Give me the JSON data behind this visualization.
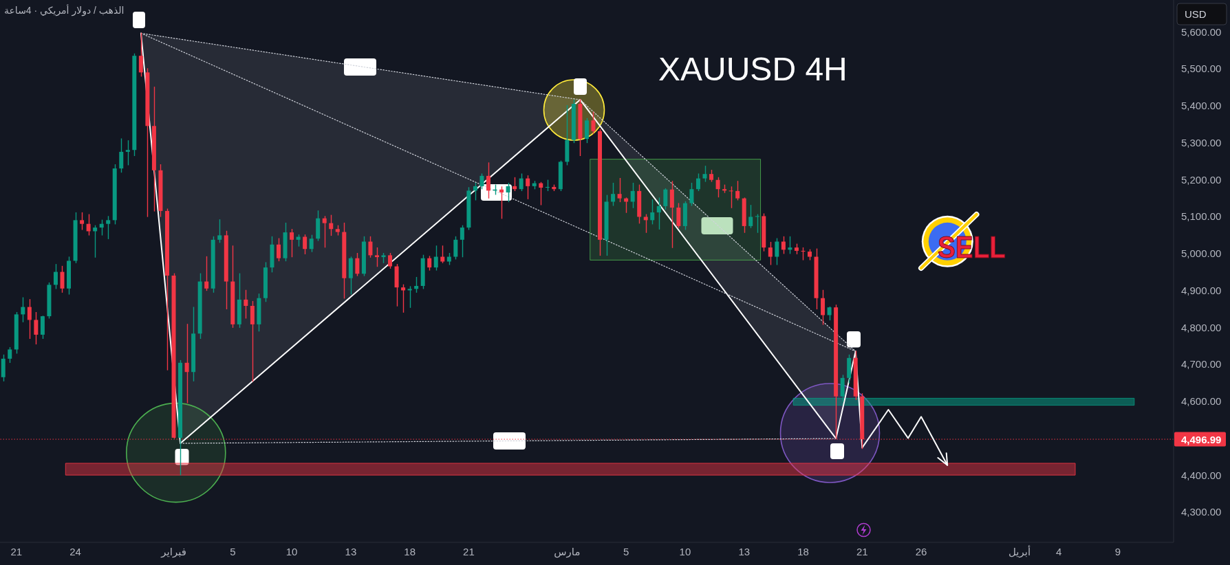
{
  "chart_data": {
    "type": "candlestick",
    "title": "XAUUSD 4H",
    "subtitle": "الذهب / دولار أمريكي · 4ساعة",
    "ylabel": "USD",
    "marker": "none",
    "annotations": [
      "SELL"
    ],
    "categories": [
      null,
      null,
      "21",
      null,
      null,
      null,
      null,
      null,
      null,
      null,
      null,
      "24",
      null,
      null,
      null,
      null,
      null,
      null,
      null,
      null,
      null,
      null,
      null,
      null,
      null,
      null,
      "فبراير",
      null,
      null,
      null,
      null,
      null,
      null,
      null,
      null,
      "5",
      null,
      null,
      null,
      null,
      null,
      null,
      null,
      null,
      "10",
      null,
      null,
      null,
      null,
      null,
      null,
      null,
      null,
      "13",
      null,
      null,
      null,
      null,
      null,
      null,
      null,
      null,
      "18",
      null,
      null,
      null,
      null,
      null,
      null,
      null,
      null,
      "21",
      null,
      null,
      null,
      null,
      null,
      null,
      null,
      null,
      null,
      null,
      null,
      null,
      null,
      null,
      "مارس",
      null,
      null,
      null,
      null,
      null,
      null,
      null,
      null,
      "5",
      null,
      null,
      null,
      null,
      null,
      null,
      null,
      null,
      "10",
      null,
      null,
      null,
      null,
      null,
      null,
      null,
      null,
      "13",
      null,
      null,
      null,
      null,
      null,
      null,
      null,
      null,
      "18",
      null,
      null,
      null,
      null,
      null,
      null,
      null,
      null,
      "21",
      null,
      null,
      null,
      null,
      null,
      null,
      null,
      null,
      "26",
      null,
      null,
      null,
      null,
      null,
      null,
      null,
      null,
      null,
      null,
      null,
      null,
      null,
      null,
      "أبريل",
      null,
      null,
      null,
      null,
      null,
      "4",
      null,
      null,
      null,
      null,
      null,
      null,
      null,
      null,
      "9",
      null,
      null,
      null,
      null,
      null,
      null,
      null,
      null
    ],
    "ohlc": [
      [
        4665,
        4725,
        4655,
        4715
      ],
      [
        4715,
        4745,
        4705,
        4740
      ],
      [
        4740,
        4840,
        4730,
        4835
      ],
      [
        4835,
        4880,
        4815,
        4855
      ],
      [
        4855,
        4875,
        4770,
        4820
      ],
      [
        4820,
        4840,
        4755,
        4780
      ],
      [
        4780,
        4830,
        4770,
        4830
      ],
      [
        4830,
        4920,
        4825,
        4915
      ],
      [
        4915,
        4970,
        4905,
        4950
      ],
      [
        4950,
        4965,
        4895,
        4905
      ],
      [
        4905,
        4990,
        4890,
        4980
      ],
      [
        4980,
        5110,
        4975,
        5090
      ],
      [
        5090,
        5110,
        5065,
        5080
      ],
      [
        5080,
        5105,
        5050,
        5060
      ],
      [
        5060,
        5075,
        4990,
        5070
      ],
      [
        5070,
        5090,
        5050,
        5080
      ],
      [
        5080,
        5100,
        5040,
        5090
      ],
      [
        5090,
        5240,
        5080,
        5230
      ],
      [
        5230,
        5310,
        5220,
        5275
      ],
      [
        5275,
        5305,
        5240,
        5280
      ],
      [
        5280,
        5540,
        5265,
        5535
      ],
      [
        5535,
        5596,
        5480,
        5490
      ],
      [
        5490,
        5500,
        5100,
        5345
      ],
      [
        5345,
        5450,
        5115,
        5225
      ],
      [
        5225,
        5240,
        5100,
        5115
      ],
      [
        5115,
        5120,
        4685,
        4940
      ],
      [
        4940,
        4945,
        4500,
        4501
      ],
      [
        4501,
        4710,
        4401,
        4704
      ],
      [
        4704,
        4808,
        4596,
        4679
      ],
      [
        4679,
        4854,
        4655,
        4783
      ],
      [
        4783,
        4945,
        4770,
        4924
      ],
      [
        4924,
        4991,
        4900,
        4905
      ],
      [
        4905,
        5045,
        4895,
        5037
      ],
      [
        5037,
        5091,
        5030,
        5049
      ],
      [
        5049,
        5060,
        4850,
        4924
      ],
      [
        4924,
        5020,
        4800,
        4808
      ],
      [
        4808,
        4945,
        4800,
        4875
      ],
      [
        4875,
        4900,
        4825,
        4858
      ],
      [
        4858,
        4870,
        4654,
        4808
      ],
      [
        4808,
        4890,
        4790,
        4879
      ],
      [
        4879,
        4975,
        4870,
        4962
      ],
      [
        4962,
        5045,
        4950,
        5024
      ],
      [
        5024,
        5040,
        4980,
        4987
      ],
      [
        4987,
        5082,
        4980,
        5057
      ],
      [
        5057,
        5065,
        4991,
        5037
      ],
      [
        5037,
        5050,
        5020,
        5045
      ],
      [
        5045,
        5050,
        4999,
        5012
      ],
      [
        5012,
        5049,
        5005,
        5040
      ],
      [
        5040,
        5115,
        5035,
        5095
      ],
      [
        5095,
        5100,
        5017,
        5082
      ],
      [
        5082,
        5103,
        5049,
        5066
      ],
      [
        5066,
        5075,
        5050,
        5058
      ],
      [
        5058,
        5082,
        4879,
        4933
      ],
      [
        4933,
        4990,
        4890,
        4987
      ],
      [
        4987,
        5000,
        4940,
        4945
      ],
      [
        4945,
        5045,
        4940,
        5032
      ],
      [
        5032,
        5045,
        4990,
        4995
      ],
      [
        4995,
        5015,
        4965,
        4990
      ],
      [
        4990,
        5000,
        4975,
        4995
      ],
      [
        4995,
        5000,
        4960,
        4965
      ],
      [
        4965,
        4970,
        4858,
        4908
      ],
      [
        4908,
        4915,
        4841,
        4900
      ],
      [
        4900,
        4910,
        4854,
        4904
      ],
      [
        4904,
        4935,
        4895,
        4912
      ],
      [
        4912,
        4995,
        4905,
        4987
      ],
      [
        4987,
        4992,
        4955,
        4962
      ],
      [
        4962,
        5020,
        4955,
        4991
      ],
      [
        4991,
        5020,
        4975,
        4978
      ],
      [
        4978,
        5000,
        4970,
        4991
      ],
      [
        4991,
        5045,
        4985,
        5037
      ],
      [
        5037,
        5075,
        4991,
        5070
      ],
      [
        5070,
        5178,
        5065,
        5170
      ],
      [
        5170,
        5190,
        5145,
        5182
      ],
      [
        5182,
        5215,
        5175,
        5210
      ],
      [
        5210,
        5245,
        5150,
        5170
      ],
      [
        5170,
        5185,
        5160,
        5173
      ],
      [
        5173,
        5180,
        5095,
        5165
      ],
      [
        5165,
        5190,
        5140,
        5182
      ],
      [
        5182,
        5205,
        5170,
        5174
      ],
      [
        5174,
        5215,
        5170,
        5203
      ],
      [
        5203,
        5210,
        5148,
        5182
      ],
      [
        5182,
        5195,
        5175,
        5190
      ],
      [
        5190,
        5192,
        5132,
        5178
      ],
      [
        5178,
        5198,
        5170,
        5180
      ],
      [
        5180,
        5185,
        5170,
        5174
      ],
      [
        5174,
        5250,
        5170,
        5248
      ],
      [
        5248,
        5400,
        5240,
        5307
      ],
      [
        5307,
        5415,
        5300,
        5405
      ],
      [
        5405,
        5416,
        5265,
        5310
      ],
      [
        5310,
        5365,
        5300,
        5360
      ],
      [
        5360,
        5382,
        5325,
        5331
      ],
      [
        5331,
        5335,
        4995,
        5037
      ],
      [
        5037,
        5157,
        4995,
        5140
      ],
      [
        5140,
        5190,
        5130,
        5161
      ],
      [
        5161,
        5203,
        5140,
        5149
      ],
      [
        5149,
        5150,
        5111,
        5140
      ],
      [
        5140,
        5190,
        5124,
        5169
      ],
      [
        5169,
        5185,
        5082,
        5099
      ],
      [
        5099,
        5105,
        5057,
        5090
      ],
      [
        5090,
        5145,
        5080,
        5111
      ],
      [
        5111,
        5150,
        5066,
        5128
      ],
      [
        5128,
        5175,
        5120,
        5173
      ],
      [
        5173,
        5195,
        5016,
        5124
      ],
      [
        5124,
        5135,
        5070,
        5074
      ],
      [
        5074,
        5140,
        5065,
        5136
      ],
      [
        5136,
        5190,
        5130,
        5174
      ],
      [
        5174,
        5215,
        5170,
        5203
      ],
      [
        5203,
        5236,
        5195,
        5215
      ],
      [
        5215,
        5225,
        5195,
        5199
      ],
      [
        5199,
        5205,
        5153,
        5174
      ],
      [
        5174,
        5185,
        5165,
        5170
      ],
      [
        5170,
        5180,
        5124,
        5169
      ],
      [
        5169,
        5195,
        5145,
        5149
      ],
      [
        5149,
        5150,
        5057,
        5074
      ],
      [
        5074,
        5130,
        5070,
        5099
      ],
      [
        5099,
        5105,
        5057,
        5101
      ],
      [
        5101,
        5107,
        5007,
        5016
      ],
      [
        5016,
        5030,
        4970,
        4991
      ],
      [
        4991,
        5040,
        4970,
        5032
      ],
      [
        5032,
        5045,
        5000,
        5010
      ],
      [
        5010,
        5045,
        5000,
        5016
      ],
      [
        5016,
        5025,
        4999,
        5007
      ],
      [
        5007,
        5015,
        4983,
        5005
      ],
      [
        5005,
        5010,
        4983,
        4991
      ],
      [
        4991,
        5012,
        4850,
        4879
      ],
      [
        4879,
        4900,
        4808,
        4833
      ],
      [
        4833,
        4855,
        4820,
        4854
      ],
      [
        4854,
        4860,
        4499,
        4613
      ],
      [
        4613,
        4670,
        4600,
        4663
      ],
      [
        4663,
        4725,
        4650,
        4717
      ],
      [
        4717,
        4735,
        4605,
        4613
      ],
      [
        4613,
        4620,
        4472,
        4497
      ],
      null,
      null,
      null,
      null,
      null,
      null,
      null,
      null,
      null,
      null,
      null,
      null,
      null,
      null,
      null,
      null,
      null,
      null,
      null,
      null,
      null,
      null,
      null,
      null,
      null,
      null,
      null,
      null,
      null,
      null,
      null,
      null,
      null,
      null,
      null,
      null,
      null,
      null,
      null,
      null,
      null,
      null,
      null,
      null,
      null,
      null,
      null
    ],
    "colors": [
      "#089981",
      "#089981",
      "#089981",
      "#089981",
      "#f23645",
      "#f23645",
      "#089981",
      "#089981",
      "#089981",
      "#f23645",
      "#089981",
      "#089981",
      "#f23645",
      "#f23645",
      "#089981",
      "#089981",
      "#089981",
      "#089981",
      "#089981",
      "#089981",
      "#089981",
      "#f23645",
      "#f23645",
      "#f23645",
      "#f23645",
      "#f23645",
      "#f23645",
      "#089981",
      "#f23645",
      "#089981",
      "#089981",
      "#f23645",
      "#089981",
      "#089981",
      "#f23645",
      "#f23645",
      "#089981",
      "#f23645",
      "#f23645",
      "#089981",
      "#089981",
      "#089981",
      "#f23645",
      "#089981",
      "#f23645",
      "#089981",
      "#f23645",
      "#089981",
      "#089981",
      "#f23645",
      "#f23645",
      "#f23645",
      "#f23645",
      "#089981",
      "#f23645",
      "#089981",
      "#f23645",
      "#f23645",
      "#089981",
      "#f23645",
      "#f23645",
      "#f23645",
      "#089981",
      "#089981",
      "#089981",
      "#f23645",
      "#089981",
      "#f23645",
      "#089981",
      "#089981",
      "#089981",
      "#089981",
      "#089981",
      "#089981",
      "#f23645",
      "#089981",
      "#f23645",
      "#089981",
      "#f23645",
      "#089981",
      "#f23645",
      "#089981",
      "#f23645",
      "#089981",
      "#f23645",
      "#089981",
      "#089981",
      "#089981",
      "#f23645",
      "#089981",
      "#f23645",
      "#f23645",
      "#089981",
      "#089981",
      "#f23645",
      "#f23645",
      "#089981",
      "#f23645",
      "#f23645",
      "#089981",
      "#089981",
      "#089981",
      "#f23645",
      "#f23645",
      "#089981",
      "#089981",
      "#089981",
      "#089981",
      "#f23645",
      "#f23645",
      "#f23645",
      "#f23645",
      "#f23645",
      "#f23645",
      "#089981",
      "#089981",
      "#f23645",
      "#f23645",
      "#089981",
      "#f23645",
      "#089981",
      "#f23645",
      "#f23645",
      "#f23645",
      "#f23645",
      "#f23645",
      "#089981",
      "#f23645",
      "#089981",
      "#089981",
      "#f23645",
      "#f23645",
      null,
      null,
      null,
      null,
      null,
      null,
      null,
      null,
      null,
      null,
      null,
      null,
      null,
      null,
      null,
      null,
      null,
      null,
      null,
      null,
      null,
      null,
      null,
      null,
      null,
      null,
      null,
      null,
      null,
      null,
      null,
      null,
      null,
      null,
      null,
      null,
      null,
      null,
      null,
      null,
      null,
      null,
      null,
      null,
      null,
      null,
      null
    ],
    "series": [
      {
        "type": "line",
        "color": "#ffffff",
        "values": [
          null,
          null,
          null,
          null,
          null,
          null,
          null,
          null,
          null,
          null,
          null,
          null,
          null,
          null,
          null,
          null,
          null,
          null,
          null,
          null,
          null,
          5596,
          null,
          null,
          null,
          null,
          null,
          4486,
          null,
          null,
          null,
          null,
          null,
          null,
          null,
          null,
          null,
          null,
          null,
          null,
          null,
          null,
          null,
          null,
          null,
          null,
          null,
          null,
          null,
          null,
          null,
          null,
          null,
          null,
          null,
          null,
          null,
          null,
          null,
          null,
          null,
          null,
          null,
          null,
          null,
          null,
          null,
          null,
          null,
          null,
          null,
          null,
          null,
          null,
          null,
          null,
          null,
          null,
          null,
          null,
          null,
          null,
          null,
          null,
          null,
          null,
          null,
          null,
          5416,
          null,
          null,
          null,
          null,
          null,
          null,
          null,
          null,
          null,
          null,
          null,
          null,
          null,
          null,
          null,
          null,
          null,
          null,
          null,
          null,
          null,
          null,
          null,
          null,
          null,
          null,
          null,
          null,
          null,
          null,
          null,
          null,
          null,
          null,
          null,
          null,
          null,
          null,
          4499,
          null,
          null,
          4735,
          4474,
          null,
          null,
          null,
          4577,
          null,
          null,
          4500,
          null,
          4558,
          null,
          null,
          null,
          4427,
          null,
          null,
          null,
          null,
          null,
          null,
          null,
          null,
          null,
          null,
          null,
          null,
          null,
          null,
          null,
          null,
          null,
          null,
          null,
          null,
          null,
          null,
          null,
          null,
          null,
          null,
          null,
          null,
          null,
          null,
          null,
          null,
          null,
          null
        ]
      },
      {
        "type": "line",
        "color": "#d1d4dc",
        "line_style": "dotted",
        "values": [
          null,
          null,
          null,
          null,
          null,
          null,
          null,
          null,
          null,
          null,
          null,
          null,
          null,
          null,
          null,
          null,
          null,
          null,
          null,
          null,
          null,
          5596,
          null,
          null,
          null,
          null,
          null,
          null,
          null,
          null,
          null,
          null,
          null,
          null,
          null,
          null,
          null,
          null,
          null,
          null,
          null,
          null,
          null,
          null,
          null,
          null,
          null,
          null,
          null,
          null,
          null,
          null,
          null,
          null,
          null,
          null,
          null,
          null,
          null,
          null,
          null,
          null,
          null,
          null,
          null,
          null,
          null,
          null,
          null,
          null,
          null,
          null,
          null,
          null,
          null,
          null,
          null,
          null,
          null,
          null,
          null,
          null,
          null,
          null,
          null,
          null,
          null,
          null,
          5416,
          null,
          null,
          null,
          null,
          null,
          null,
          null,
          null,
          null,
          null,
          null,
          null,
          null,
          null,
          null,
          null,
          null,
          null,
          null,
          null,
          null,
          null,
          null,
          null,
          null,
          null,
          null,
          null,
          null,
          null,
          null,
          null,
          null,
          null,
          null,
          null,
          null,
          null,
          null,
          null,
          null,
          4735,
          null,
          null,
          null,
          null,
          null,
          null,
          null,
          null,
          null,
          null,
          null,
          null,
          null,
          null,
          null,
          null,
          null,
          null,
          null,
          null,
          null,
          null,
          null,
          null,
          null,
          null,
          null,
          null,
          null,
          null,
          null,
          null,
          null,
          null,
          null,
          null,
          null,
          null,
          null,
          null,
          null,
          null,
          null,
          null,
          null,
          null,
          null,
          null
        ]
      },
      {
        "type": "line",
        "color": "#d1d4dc",
        "line_style": "dotted",
        "values": [
          null,
          null,
          null,
          null,
          null,
          null,
          null,
          null,
          null,
          null,
          null,
          null,
          null,
          null,
          null,
          null,
          null,
          null,
          null,
          null,
          null,
          5596,
          null,
          null,
          null,
          null,
          null,
          null,
          null,
          null,
          null,
          null,
          null,
          null,
          null,
          null,
          null,
          null,
          null,
          null,
          null,
          null,
          null,
          null,
          null,
          null,
          null,
          null,
          null,
          null,
          null,
          null,
          null,
          null,
          null,
          null,
          null,
          null,
          null,
          null,
          null,
          null,
          null,
          null,
          null,
          null,
          null,
          null,
          null,
          null,
          null,
          null,
          null,
          null,
          null,
          null,
          null,
          null,
          null,
          null,
          null,
          null,
          null,
          null,
          null,
          null,
          null,
          null,
          null,
          null,
          null,
          null,
          null,
          null,
          null,
          null,
          null,
          null,
          null,
          null,
          null,
          null,
          null,
          null,
          null,
          null,
          null,
          null,
          null,
          null,
          null,
          null,
          null,
          null,
          null,
          null,
          null,
          null,
          null,
          null,
          null,
          null,
          null,
          null,
          null,
          null,
          null,
          null,
          null,
          null,
          4735,
          null,
          null,
          null,
          null,
          null,
          null,
          null,
          null,
          null,
          null,
          null,
          null,
          null,
          null,
          null,
          null,
          null,
          null,
          null,
          null,
          null,
          null,
          null,
          null,
          null,
          null,
          null,
          null,
          null,
          null,
          null,
          null,
          null,
          null,
          null,
          null,
          null,
          null,
          null,
          null,
          null,
          null,
          null,
          null,
          null,
          null,
          null,
          null
        ]
      },
      {
        "type": "line",
        "color": "#d1d4dc",
        "line_style": "dotted",
        "values": [
          null,
          null,
          null,
          null,
          null,
          null,
          null,
          null,
          null,
          null,
          null,
          null,
          null,
          null,
          null,
          null,
          null,
          null,
          null,
          null,
          null,
          null,
          null,
          null,
          null,
          null,
          null,
          4486,
          null,
          null,
          null,
          null,
          null,
          null,
          null,
          null,
          null,
          null,
          null,
          null,
          null,
          null,
          null,
          null,
          null,
          null,
          null,
          null,
          null,
          null,
          null,
          null,
          null,
          null,
          null,
          null,
          null,
          null,
          null,
          null,
          null,
          null,
          null,
          null,
          null,
          null,
          null,
          null,
          null,
          null,
          null,
          null,
          null,
          null,
          null,
          null,
          null,
          null,
          null,
          null,
          null,
          null,
          null,
          null,
          null,
          null,
          null,
          null,
          null,
          null,
          null,
          null,
          null,
          null,
          null,
          null,
          null,
          null,
          null,
          null,
          null,
          null,
          null,
          null,
          null,
          null,
          null,
          null,
          null,
          null,
          null,
          null,
          null,
          null,
          null,
          null,
          null,
          null,
          null,
          null,
          null,
          null,
          null,
          null,
          null,
          null,
          null,
          4499,
          null,
          null,
          null,
          null,
          null,
          null,
          null,
          null,
          null,
          null,
          null,
          null,
          null,
          null,
          null,
          null,
          null,
          null,
          null,
          null,
          null,
          null,
          null,
          null,
          null,
          null,
          null,
          null,
          null,
          null,
          null,
          null,
          null,
          null,
          null,
          null,
          null,
          null,
          null,
          null,
          null,
          null,
          null,
          null,
          null,
          null,
          null,
          null,
          null,
          null,
          null
        ]
      }
    ],
    "ylim": [
      4218,
      5686
    ],
    "yticks": [
      {
        "value": 4300,
        "label": "4,300.00"
      },
      {
        "value": 4400,
        "label": "4,400.00"
      },
      {
        "value": 4600,
        "label": "4,600.00"
      },
      {
        "value": 4700,
        "label": "4,700.00"
      },
      {
        "value": 4800,
        "label": "4,800.00"
      },
      {
        "value": 4900,
        "label": "4,900.00"
      },
      {
        "value": 5000,
        "label": "5,000.00"
      },
      {
        "value": 5100,
        "label": "5,100.00"
      },
      {
        "value": 5200,
        "label": "5,200.00"
      },
      {
        "value": 5300,
        "label": "5,300.00"
      },
      {
        "value": 5400,
        "label": "5,400.00"
      },
      {
        "value": 5500,
        "label": "5,500.00"
      },
      {
        "value": 5600,
        "label": "5,600.00"
      }
    ],
    "ref_lines": [
      {
        "axis": "y",
        "value": 4496.99,
        "label": "4,496.99",
        "color": "#f23645",
        "line_style": "dotted"
      }
    ],
    "bands": [
      {
        "axis": "y",
        "from": 4400,
        "to": 4432,
        "color": "#f23645"
      },
      {
        "axis": "y",
        "from": 4589,
        "to": 4608,
        "color": "#089981"
      },
      {
        "axis": "y",
        "from": 4982,
        "to": 5255,
        "color": "#4caf50"
      }
    ]
  }
}
